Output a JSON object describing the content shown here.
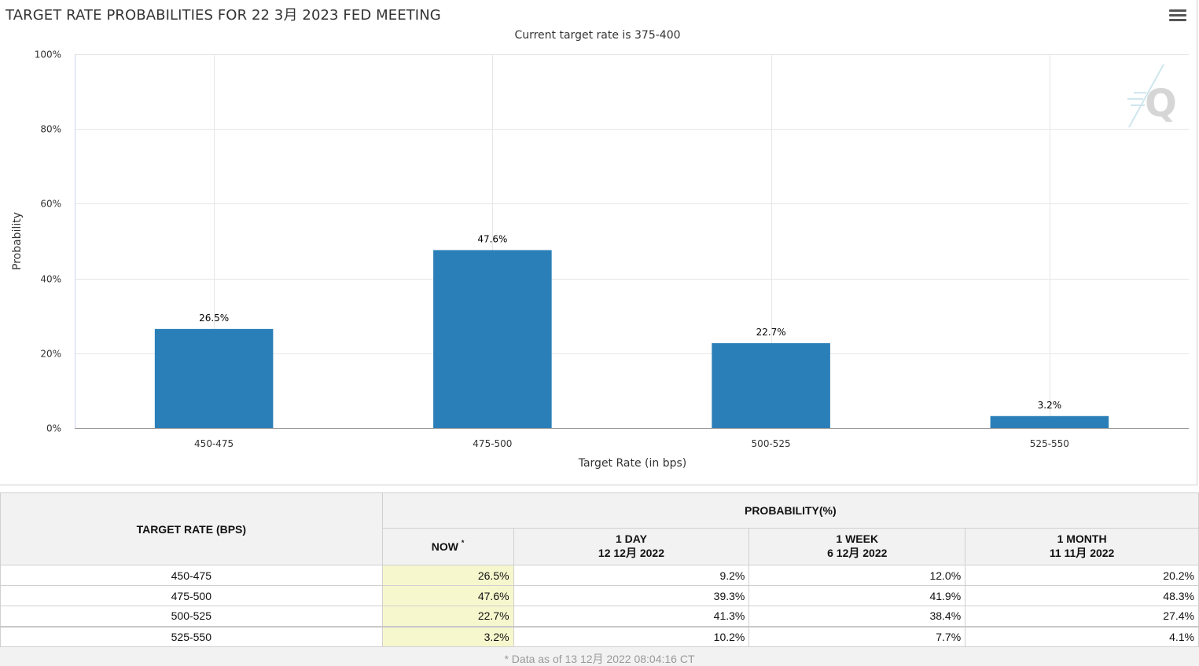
{
  "chart_data": {
    "type": "bar",
    "title": "TARGET RATE PROBABILITIES FOR 22 3月 2023 FED MEETING",
    "subtitle": "Current target rate is 375-400",
    "categories": [
      "450-475",
      "475-500",
      "500-525",
      "525-550"
    ],
    "values": [
      26.5,
      47.6,
      22.7,
      3.2
    ],
    "data_labels": [
      "26.5%",
      "47.6%",
      "22.7%",
      "3.2%"
    ],
    "xlabel": "Target Rate (in bps)",
    "ylabel": "Probability",
    "ylim": [
      0,
      100
    ],
    "yticks": [
      0,
      20,
      40,
      60,
      80,
      100
    ],
    "ytick_labels": [
      "0%",
      "20%",
      "40%",
      "60%",
      "80%",
      "100%"
    ],
    "grid": true,
    "bar_color": "#2b7fb8"
  },
  "menu": {
    "icon": "hamburger-menu-icon"
  },
  "watermark": {
    "icon": "quikstrike-q-logo-icon"
  },
  "table": {
    "target_rate_header": "TARGET RATE (BPS)",
    "probability_header": "PROBABILITY(%)",
    "columns": [
      {
        "label": "NOW",
        "marker": "*",
        "date": ""
      },
      {
        "label": "1 DAY",
        "date": "12 12月 2022"
      },
      {
        "label": "1 WEEK",
        "date": "6 12月 2022"
      },
      {
        "label": "1 MONTH",
        "date": "11 11月 2022"
      }
    ],
    "rows": [
      {
        "rate": "450-475",
        "now": "26.5%",
        "day": "9.2%",
        "week": "12.0%",
        "month": "20.2%"
      },
      {
        "rate": "475-500",
        "now": "47.6%",
        "day": "39.3%",
        "week": "41.9%",
        "month": "48.3%"
      },
      {
        "rate": "500-525",
        "now": "22.7%",
        "day": "41.3%",
        "week": "38.4%",
        "month": "27.4%"
      },
      {
        "rate": "525-550",
        "now": "3.2%",
        "day": "10.2%",
        "week": "7.7%",
        "month": "4.1%"
      }
    ],
    "highlight_color": "#f7f7ce",
    "footnote": "* Data as of 13 12月 2022 08:04:16 CT"
  }
}
